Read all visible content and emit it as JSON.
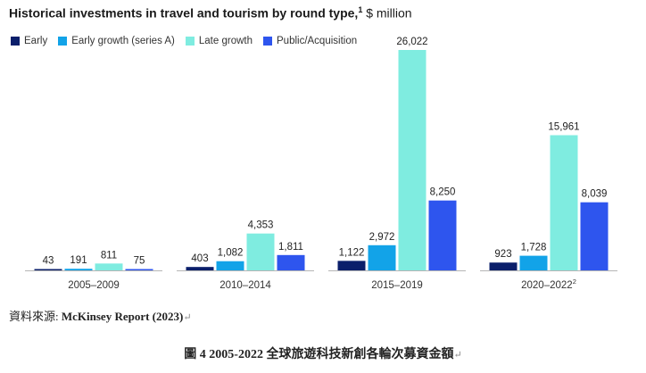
{
  "chart_data": {
    "type": "bar",
    "title": "Historical investments in travel and tourism by round type,",
    "title_sup": "1",
    "unit": "$ million",
    "categories": [
      "2005–2009",
      "2010–2014",
      "2015–2019",
      "2020–2022"
    ],
    "category_sups": [
      "",
      "",
      "",
      "2"
    ],
    "series": [
      {
        "name": "Early",
        "color": "#0b1f6b",
        "values": [
          43,
          403,
          1122,
          923
        ],
        "labels": [
          "43",
          "403",
          "1,122",
          "923"
        ]
      },
      {
        "name": "Early growth (series A)",
        "color": "#12a3e8",
        "values": [
          191,
          1082,
          2972,
          1728
        ],
        "labels": [
          "191",
          "1,082",
          "2,972",
          "1,728"
        ]
      },
      {
        "name": "Late growth",
        "color": "#7fece0",
        "values": [
          811,
          4353,
          26022,
          15961
        ],
        "labels": [
          "811",
          "4,353",
          "26,022",
          "15,961"
        ]
      },
      {
        "name": "Public/Acquisition",
        "color": "#2e55ee",
        "values": [
          75,
          1811,
          8250,
          8039
        ],
        "labels": [
          "75",
          "1,811",
          "8,250",
          "8,039"
        ]
      }
    ],
    "ylim": [
      0,
      26022
    ],
    "grid": false,
    "legend_position": "top-left"
  },
  "source": {
    "prefix": "資料來源: ",
    "text": "McKinsey Report (2023)",
    "mark": "↵"
  },
  "caption": {
    "text": "圖 4 2005-2022  全球旅遊科技新創各輪次募資金額",
    "mark": "↵"
  }
}
